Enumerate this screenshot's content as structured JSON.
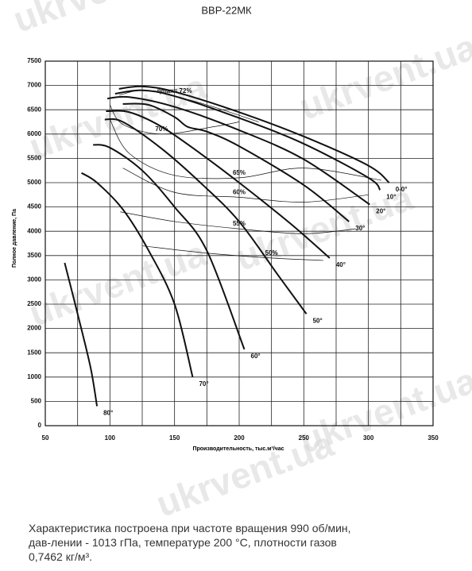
{
  "watermark": "ukrvent.ua",
  "caption": [
    "Характеристика построена при частоте вращения 990 об/мин,",
    "дав-лении - 1013 гПа, температуре 200 °С, плотности газов",
    "0,7462 кг/м³."
  ],
  "chart_data": {
    "type": "line",
    "title": "ВВР-22МК",
    "xlabel": "Производительность, тыс.м³/час",
    "ylabel": "Полное давление, Па",
    "xlim": [
      50,
      350
    ],
    "ylim": [
      0,
      7500
    ],
    "xticks": [
      50,
      100,
      150,
      200,
      250,
      300,
      350
    ],
    "x_minor_ticks": [
      75,
      125,
      175,
      225,
      275,
      325
    ],
    "yticks": [
      0,
      500,
      1000,
      1500,
      2000,
      2500,
      3000,
      3500,
      4000,
      4500,
      5000,
      5500,
      6000,
      6500,
      7000,
      7500
    ],
    "grid": true,
    "color": "#111111",
    "series": [
      {
        "name": "0-0°",
        "x": [
          107,
          125,
          150,
          200,
          250,
          300,
          316
        ],
        "values": [
          6930,
          6980,
          6870,
          6450,
          5950,
          5350,
          5000
        ]
      },
      {
        "name": "10°",
        "x": [
          104,
          125,
          150,
          200,
          250,
          300,
          309
        ],
        "values": [
          6830,
          6900,
          6780,
          6330,
          5800,
          5100,
          4850
        ]
      },
      {
        "name": "20°",
        "x": [
          98,
          115,
          150,
          200,
          250,
          301
        ],
        "values": [
          6730,
          6760,
          6560,
          6080,
          5480,
          4550
        ]
      },
      {
        "name": "30°",
        "x": [
          110,
          130,
          150,
          160,
          175,
          200,
          250,
          285
        ],
        "values": [
          6620,
          6600,
          6350,
          6150,
          6050,
          5750,
          4950,
          4200
        ]
      },
      {
        "name": "40°",
        "x": [
          97,
          115,
          140,
          170,
          200,
          240,
          270
        ],
        "values": [
          6470,
          6450,
          6150,
          5600,
          5000,
          4150,
          3450
        ]
      },
      {
        "name": "50°",
        "x": [
          96,
          110,
          140,
          170,
          200,
          230,
          252
        ],
        "values": [
          6300,
          6250,
          5700,
          5000,
          4200,
          3100,
          2300
        ]
      },
      {
        "name": "60°",
        "x": [
          87,
          100,
          125,
          150,
          175,
          204
        ],
        "values": [
          5780,
          5720,
          5250,
          4500,
          3600,
          1570
        ]
      },
      {
        "name": "70°",
        "x": [
          78,
          90,
          110,
          130,
          150,
          164
        ],
        "values": [
          5200,
          5000,
          4450,
          3600,
          2500,
          1000
        ]
      },
      {
        "name": "80°",
        "x": [
          65,
          75,
          85,
          90
        ],
        "values": [
          3350,
          2300,
          1200,
          400
        ]
      }
    ],
    "efficiency_curves": [
      {
        "name": "ηmax= 72%",
        "x": [
          107,
          125,
          150,
          180,
          215
        ],
        "values": [
          6800,
          6900,
          6780,
          6560,
          6250
        ]
      },
      {
        "name": "70%",
        "x": [
          100,
          110,
          140,
          180,
          200
        ],
        "values": [
          6600,
          6200,
          6000,
          6150,
          6250
        ]
      },
      {
        "name": "65%",
        "x": [
          100,
          115,
          150,
          200,
          250,
          310
        ],
        "values": [
          6300,
          5600,
          5150,
          5100,
          5300,
          5050
        ]
      },
      {
        "name": "60%",
        "x": [
          110,
          150,
          200,
          250,
          300
        ],
        "values": [
          5300,
          4800,
          4700,
          4600,
          4750
        ]
      },
      {
        "name": "55%",
        "x": [
          108,
          150,
          200,
          250,
          290
        ],
        "values": [
          4400,
          4200,
          4050,
          3950,
          4050
        ]
      },
      {
        "name": "50%",
        "x": [
          125,
          175,
          225,
          265
        ],
        "values": [
          3700,
          3550,
          3450,
          3400
        ]
      }
    ]
  }
}
